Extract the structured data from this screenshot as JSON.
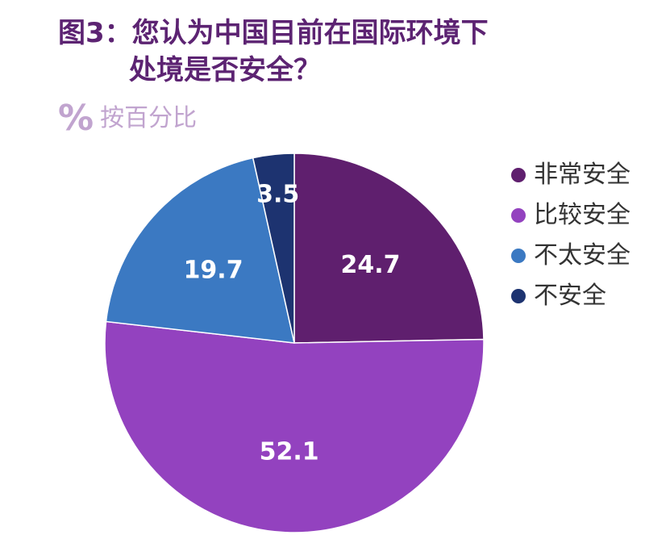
{
  "title": {
    "line1": "图3：您认为中国目前在国际环境下",
    "line2": "处境是否安全？"
  },
  "unit": {
    "icon": "%",
    "label": "按百分比"
  },
  "colors": {
    "title": "#5c2372",
    "unit": "#c1a4cf"
  },
  "chart_data": {
    "type": "pie",
    "categories": [
      "非常安全",
      "比较安全",
      "不太安全",
      "不安全"
    ],
    "values": [
      24.7,
      52.1,
      19.7,
      3.5
    ],
    "value_labels": [
      "24.7",
      "52.1",
      "19.7",
      "3.5"
    ],
    "colors": [
      "#5f1f6e",
      "#9342bf",
      "#3b79c2",
      "#1d3370"
    ],
    "start": "12 o'clock",
    "direction": "clockwise",
    "legend_position": "right"
  }
}
